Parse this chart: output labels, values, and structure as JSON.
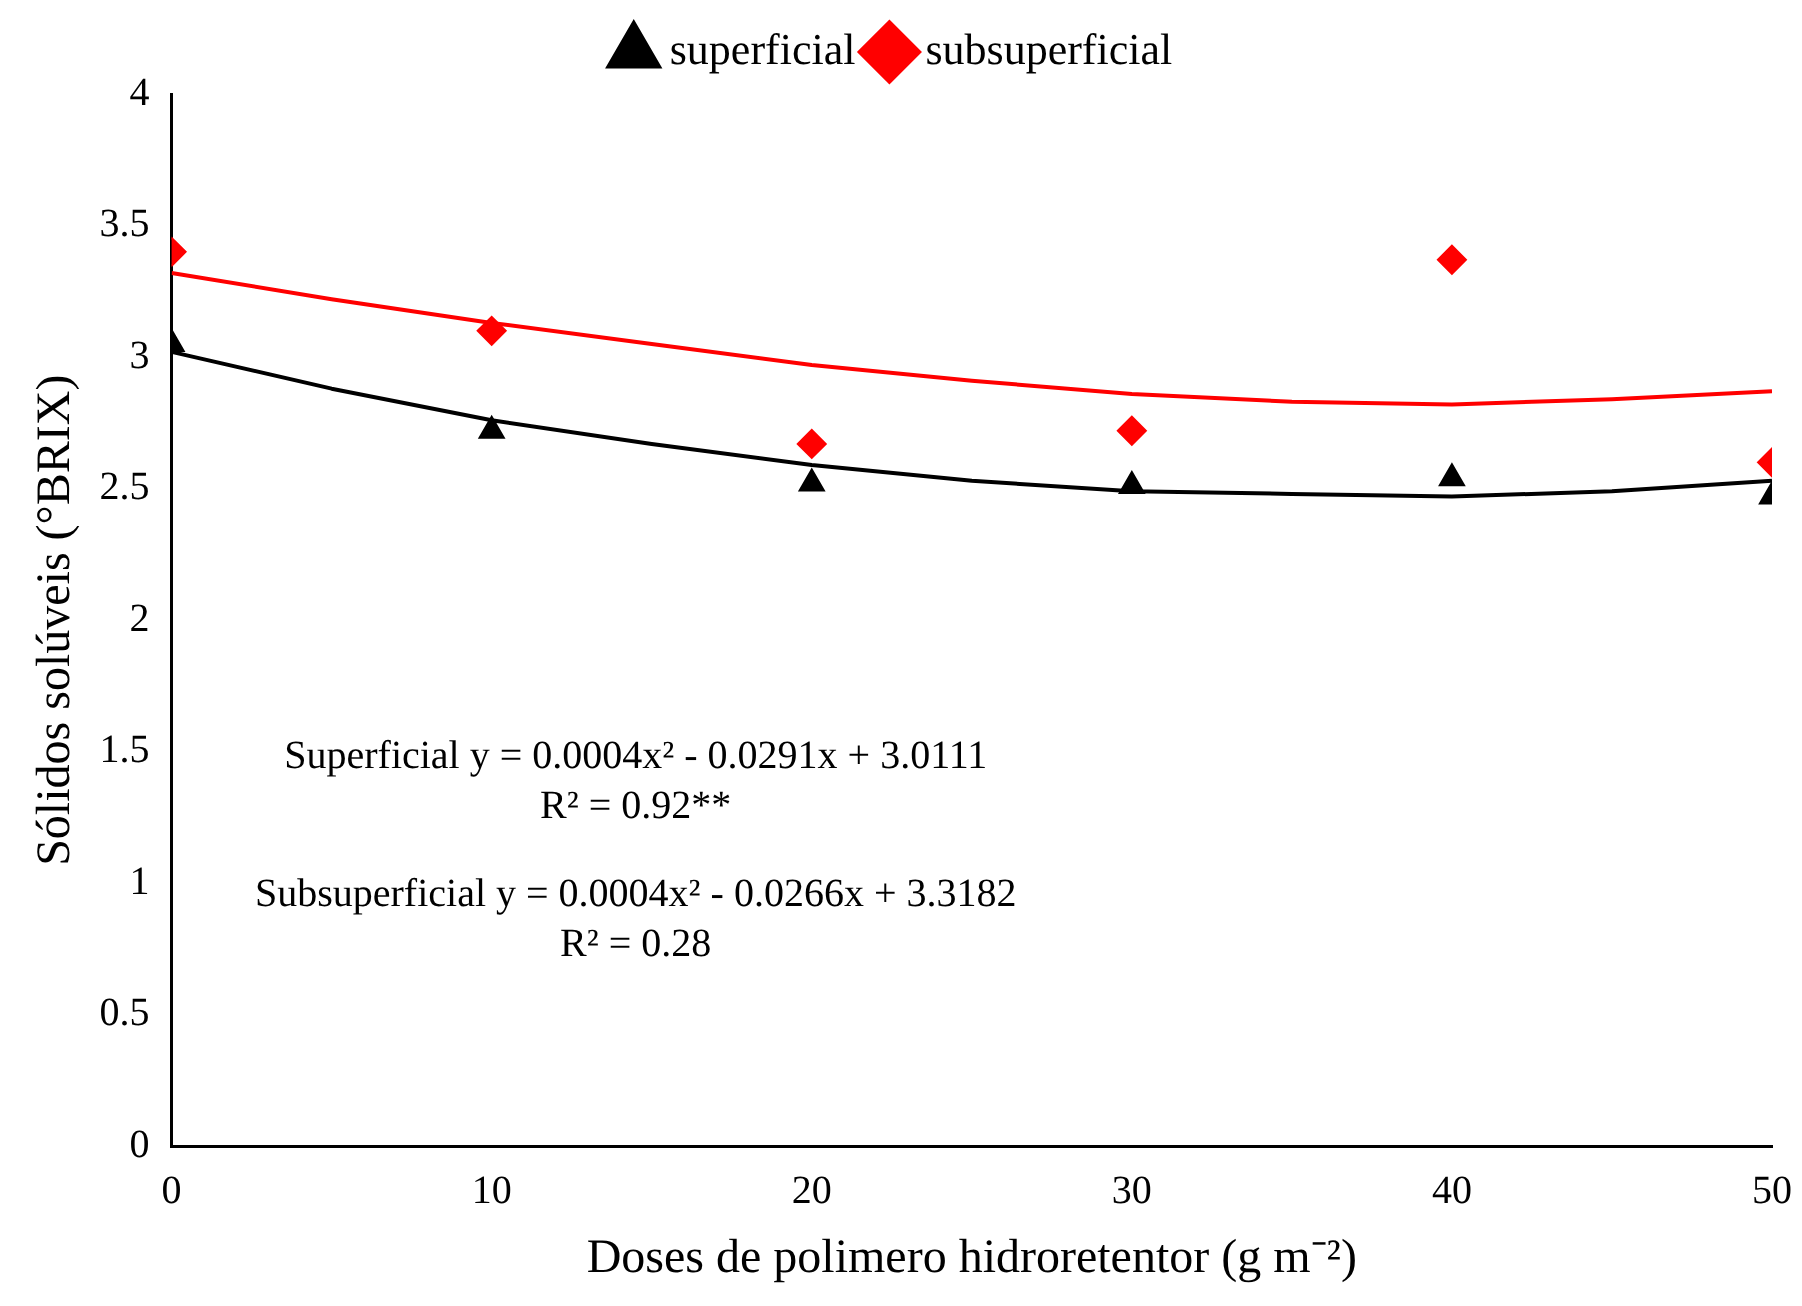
{
  "chart_data": {
    "type": "scatter",
    "xlabel": "Doses de polimero hidroretentor (g m⁻²)",
    "ylabel": "Sólidos solúveis (°BRIX)",
    "x": [
      0,
      10,
      20,
      30,
      40,
      50
    ],
    "series": [
      {
        "name": "superficial",
        "color": "#000000",
        "marker": "triangle",
        "values": [
          3.05,
          2.72,
          2.52,
          2.51,
          2.54,
          2.47
        ]
      },
      {
        "name": "subsuperficial",
        "color": "#ff0000",
        "marker": "diamond",
        "values": [
          3.4,
          3.1,
          2.67,
          2.72,
          3.37,
          2.6
        ]
      },
      {
        "type": "line",
        "color": "#000000",
        "marker": "none",
        "x": [
          0,
          5,
          10,
          15,
          20,
          25,
          30,
          35,
          40,
          45,
          50
        ],
        "values": [
          3.02,
          2.88,
          2.76,
          2.67,
          2.59,
          2.53,
          2.49,
          2.48,
          2.47,
          2.49,
          2.53
        ]
      },
      {
        "type": "line",
        "color": "#ff0000",
        "marker": "none",
        "x": [
          0,
          5,
          10,
          15,
          20,
          25,
          30,
          35,
          40,
          45,
          50
        ],
        "values": [
          3.32,
          3.22,
          3.13,
          3.05,
          2.97,
          2.91,
          2.86,
          2.83,
          2.82,
          2.84,
          2.87
        ]
      }
    ],
    "xlim": [
      0,
      50
    ],
    "xticks": [
      0,
      10,
      20,
      30,
      40,
      50
    ],
    "ylim": [
      0,
      4
    ],
    "yticks": [
      0,
      0.5,
      1,
      1.5,
      2,
      2.5,
      3,
      3.5,
      4
    ],
    "grid": false,
    "legend": "top",
    "annotations": [
      "Superficial y = 0.0004x² - 0.0291x + 3.0111",
      "R² = 0.92**",
      "Subsuperficial y = 0.0004x² - 0.0266x + 3.3182",
      "R² = 0.28"
    ]
  }
}
